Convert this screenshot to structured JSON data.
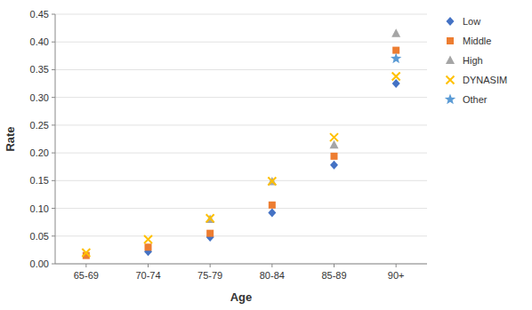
{
  "chart_data": {
    "type": "scatter",
    "xlabel": "Age",
    "ylabel": "Rate",
    "categories": [
      "65-69",
      "70-74",
      "75-79",
      "80-84",
      "85-89",
      "90+"
    ],
    "series": [
      {
        "name": "Low",
        "color": "#4472C4",
        "marker": "diamond",
        "values": [
          null,
          0.022,
          0.048,
          0.092,
          0.178,
          0.325
        ]
      },
      {
        "name": "Middle",
        "color": "#ED7D31",
        "marker": "square",
        "values": [
          0.015,
          0.03,
          0.055,
          0.106,
          0.194,
          0.385
        ]
      },
      {
        "name": "High",
        "color": "#A5A5A5",
        "marker": "triangle",
        "values": [
          null,
          null,
          0.08,
          0.148,
          0.214,
          0.415
        ]
      },
      {
        "name": "DYNASIM",
        "color": "#FFC000",
        "marker": "x",
        "values": [
          0.02,
          0.044,
          0.082,
          0.149,
          0.228,
          0.338
        ]
      },
      {
        "name": "Other",
        "color": "#5B9BD5",
        "marker": "star",
        "values": [
          null,
          null,
          null,
          null,
          null,
          0.37
        ]
      }
    ],
    "ylim": [
      0.0,
      0.45
    ],
    "yticks": [
      {
        "value": 0.0,
        "label": "0.00"
      },
      0.05,
      {
        "value": 0.1,
        "label": "0.10"
      },
      0.15,
      {
        "value": 0.2,
        "label": "0.20"
      },
      0.25,
      {
        "value": 0.3,
        "label": "0.30"
      },
      0.35,
      {
        "value": 0.4,
        "label": "0.40"
      },
      0.45
    ],
    "grid": true,
    "legend": "right"
  }
}
